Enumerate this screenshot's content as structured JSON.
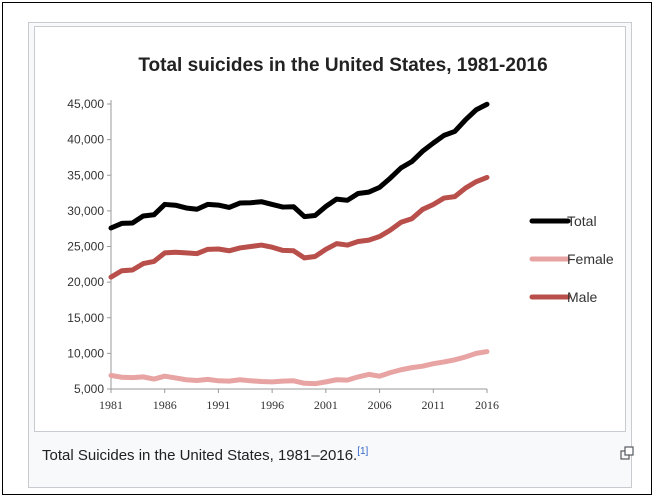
{
  "caption": {
    "text": "Total Suicides in the United States, 1981–2016.",
    "ref": "[1]"
  },
  "icons": {
    "magnify": "enlarge-icon"
  },
  "chart_data": {
    "type": "line",
    "title": "Total suicides in the United States, 1981-2016",
    "xlabel": "",
    "ylabel": "",
    "xlim": [
      1981,
      2016
    ],
    "ylim": [
      5000,
      45000
    ],
    "xticks": [
      1981,
      1986,
      1991,
      1996,
      2001,
      2006,
      2011,
      2016
    ],
    "yticks": [
      5000,
      10000,
      15000,
      20000,
      25000,
      30000,
      35000,
      40000,
      45000
    ],
    "ytick_labels": [
      "5,000",
      "10,000",
      "15,000",
      "20,000",
      "25,000",
      "30,000",
      "35,000",
      "40,000",
      "45,000"
    ],
    "grid": false,
    "legend": "right",
    "x": [
      1981,
      1982,
      1983,
      1984,
      1985,
      1986,
      1987,
      1988,
      1989,
      1990,
      1991,
      1992,
      1993,
      1994,
      1995,
      1996,
      1997,
      1998,
      1999,
      2000,
      2001,
      2002,
      2003,
      2004,
      2005,
      2006,
      2007,
      2008,
      2009,
      2010,
      2011,
      2012,
      2013,
      2014,
      2015,
      2016
    ],
    "series": [
      {
        "name": "Total",
        "color": "#000000",
        "values": [
          27596,
          28242,
          28295,
          29286,
          29453,
          30904,
          30796,
          30407,
          30232,
          30906,
          30810,
          30484,
          31102,
          31142,
          31284,
          30903,
          30535,
          30575,
          29199,
          29350,
          30622,
          31655,
          31484,
          32439,
          32637,
          33300,
          34598,
          36035,
          36909,
          38364,
          39518,
          40600,
          41149,
          42773,
          44193,
          44965
        ]
      },
      {
        "name": "Female",
        "color": "#e8a3a3",
        "values": [
          6900,
          6650,
          6600,
          6700,
          6400,
          6800,
          6550,
          6300,
          6200,
          6350,
          6150,
          6100,
          6300,
          6150,
          6050,
          6000,
          6100,
          6150,
          5800,
          5750,
          6000,
          6300,
          6250,
          6700,
          7050,
          6800,
          7300,
          7700,
          8000,
          8200,
          8550,
          8800,
          9100,
          9500,
          10000,
          10250
        ]
      },
      {
        "name": "Male",
        "color": "#b94f4b",
        "values": [
          20700,
          21600,
          21700,
          22600,
          22900,
          24100,
          24200,
          24100,
          24000,
          24600,
          24650,
          24400,
          24800,
          25000,
          25200,
          24900,
          24450,
          24400,
          23400,
          23600,
          24600,
          25400,
          25200,
          25700,
          25900,
          26400,
          27300,
          28400,
          28900,
          30200,
          30900,
          31800,
          32000,
          33200,
          34100,
          34700
        ]
      }
    ]
  }
}
